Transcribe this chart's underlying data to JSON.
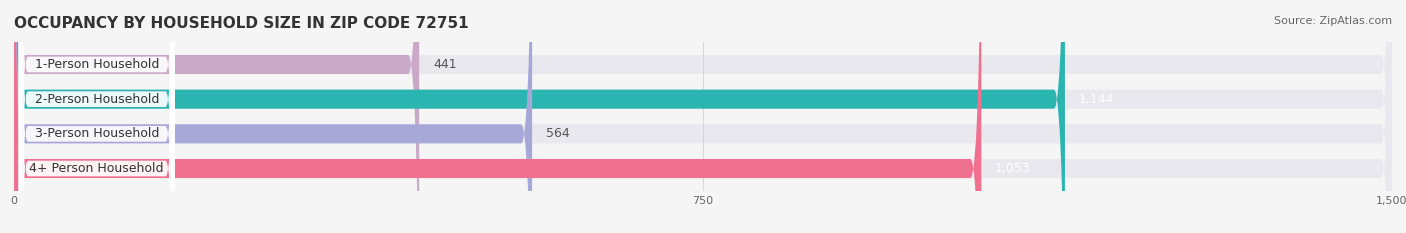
{
  "title": "OCCUPANCY BY HOUSEHOLD SIZE IN ZIP CODE 72751",
  "source": "Source: ZipAtlas.com",
  "categories": [
    "1-Person Household",
    "2-Person Household",
    "3-Person Household",
    "4+ Person Household"
  ],
  "values": [
    441,
    1144,
    564,
    1053
  ],
  "bar_colors": [
    "#c9a8c8",
    "#2ab5b0",
    "#a8a8d8",
    "#f07090"
  ],
  "bar_bg_color": "#e8e8ee",
  "label_colors": [
    "#555555",
    "#ffffff",
    "#555555",
    "#ffffff"
  ],
  "xlim": [
    0,
    1500
  ],
  "xticks": [
    0,
    750,
    1500
  ],
  "bg_color": "#f5f5f5",
  "title_fontsize": 11,
  "source_fontsize": 8,
  "bar_label_fontsize": 9,
  "category_fontsize": 9
}
